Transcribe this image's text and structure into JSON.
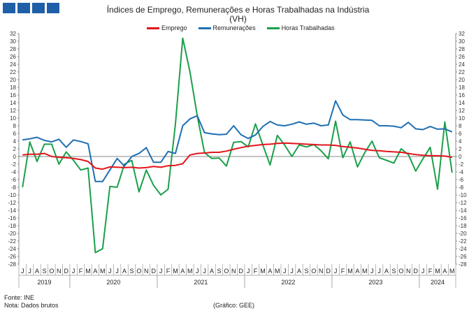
{
  "header": {
    "title": "Índices de Emprego, Remunerações e Horas Trabalhadas na Indústria",
    "subtitle": "(VH)"
  },
  "footer": {
    "source": "Fonte: INE",
    "note": "Nota: Dados brutos",
    "credit": "(Gráfico: GEE)"
  },
  "colors": {
    "emprego": "#e3141b",
    "remuneracoes": "#1f6fb2",
    "horas": "#1aa04a",
    "logo": "#1f5fa8"
  },
  "chart_data": {
    "type": "line",
    "title": "Índices de Emprego, Remunerações e Horas Trabalhadas na Indústria",
    "subtitle": "(VH)",
    "ylim": [
      -28,
      32
    ],
    "yticks": [
      32,
      30,
      28,
      26,
      24,
      22,
      20,
      18,
      16,
      14,
      12,
      10,
      8,
      6,
      4,
      2,
      0,
      -2,
      -4,
      -6,
      -8,
      -10,
      -12,
      -14,
      -16,
      -18,
      -20,
      -22,
      -24,
      -26,
      -28
    ],
    "grid": false,
    "legend_position": "top",
    "x": [
      "J",
      "J",
      "A",
      "S",
      "O",
      "N",
      "D",
      "J",
      "F",
      "M",
      "A",
      "M",
      "J",
      "J",
      "A",
      "S",
      "O",
      "N",
      "D",
      "J",
      "F",
      "M",
      "A",
      "M",
      "J",
      "J",
      "A",
      "S",
      "O",
      "N",
      "D",
      "J",
      "F",
      "M",
      "A",
      "M",
      "J",
      "J",
      "A",
      "S",
      "O",
      "N",
      "D",
      "J",
      "F",
      "M",
      "A",
      "M",
      "J",
      "J",
      "A",
      "S",
      "O",
      "N",
      "D",
      "J",
      "F",
      "M",
      "A",
      "M"
    ],
    "year_groups": [
      {
        "label": "2019",
        "start": 0,
        "count": 7
      },
      {
        "label": "2020",
        "start": 7,
        "count": 12
      },
      {
        "label": "2021",
        "start": 19,
        "count": 12
      },
      {
        "label": "2022",
        "start": 31,
        "count": 12
      },
      {
        "label": "2023",
        "start": 43,
        "count": 12
      },
      {
        "label": "2024",
        "start": 55,
        "count": 5
      }
    ],
    "series": [
      {
        "name": "Emprego",
        "color": "#e3141b",
        "values": [
          0.4,
          0.6,
          0.6,
          0.8,
          0.0,
          -0.2,
          -0.3,
          -0.5,
          -0.8,
          -1.3,
          -3.0,
          -3.3,
          -2.7,
          -2.8,
          -2.9,
          -2.8,
          -3.0,
          -2.9,
          -2.6,
          -2.8,
          -2.4,
          -2.3,
          -1.9,
          0.4,
          0.8,
          0.9,
          1.1,
          1.1,
          1.4,
          1.9,
          2.3,
          2.7,
          2.9,
          3.1,
          3.2,
          3.4,
          3.5,
          3.4,
          3.3,
          3.2,
          3.1,
          3.0,
          3.0,
          2.9,
          2.6,
          2.4,
          2.2,
          1.9,
          1.6,
          1.5,
          1.3,
          1.2,
          1.1,
          0.8,
          0.5,
          0.3,
          0.2,
          0.2,
          0.1,
          -0.2
        ]
      },
      {
        "name": "Remunerações",
        "color": "#1f6fb2",
        "values": [
          4.3,
          4.6,
          5.0,
          4.2,
          3.8,
          4.5,
          2.4,
          4.3,
          3.9,
          3.3,
          -6.5,
          -6.5,
          -3.5,
          -0.5,
          -2.5,
          0.0,
          0.8,
          2.3,
          -1.5,
          -1.5,
          1.3,
          0.8,
          8.0,
          9.8,
          10.6,
          6.2,
          5.9,
          5.7,
          5.8,
          8.0,
          5.7,
          4.7,
          5.6,
          7.8,
          9.1,
          8.2,
          8.0,
          8.4,
          9.0,
          8.4,
          8.7,
          8.0,
          8.2,
          14.5,
          10.8,
          9.6,
          9.6,
          9.5,
          9.4,
          8.0,
          8.0,
          7.9,
          7.5,
          8.9,
          7.2,
          7.0,
          7.8,
          7.1,
          7.2,
          6.4
        ]
      },
      {
        "name": "Horas Trabalhadas",
        "color": "#1aa04a",
        "values": [
          -8.0,
          3.8,
          -1.3,
          3.2,
          3.2,
          -2.0,
          1.2,
          -1.0,
          -3.5,
          -3.0,
          -25.0,
          -24.0,
          -7.8,
          -8.0,
          -2.0,
          -1.0,
          -9.2,
          -3.5,
          -7.5,
          -10.0,
          -8.5,
          8.5,
          30.8,
          22.0,
          10.6,
          1.0,
          -0.5,
          -0.4,
          -2.5,
          3.7,
          3.9,
          2.5,
          8.5,
          3.0,
          -2.2,
          5.5,
          3.0,
          0.0,
          3.0,
          2.5,
          3.1,
          1.5,
          -0.6,
          9.2,
          -0.3,
          3.8,
          -2.7,
          1.0,
          4.0,
          -0.3,
          -1.0,
          -1.7,
          2.0,
          0.5,
          -3.8,
          -0.6,
          2.4,
          -8.5,
          9.0,
          -4.2
        ]
      }
    ]
  }
}
